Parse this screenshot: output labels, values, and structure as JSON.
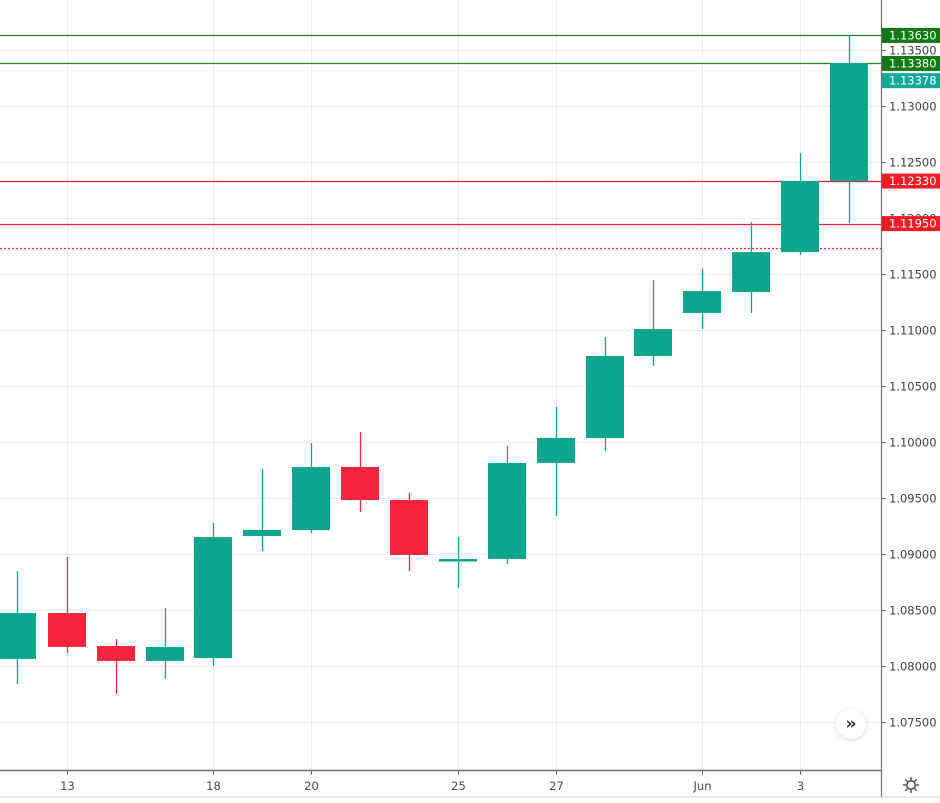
{
  "chart_data": {
    "type": "candlestick",
    "title": "",
    "xlabel": "",
    "ylabel": "",
    "ylim": [
      1.0715,
      1.1395
    ],
    "grid": true,
    "x_tick_labels": [
      "13",
      "18",
      "20",
      "25",
      "27",
      "Jun",
      "3"
    ],
    "y_tick_labels": [
      "1.13500",
      "1.13000",
      "1.12500",
      "1.12000",
      "1.11500",
      "1.11000",
      "1.10500",
      "1.10000",
      "1.09500",
      "1.09000",
      "1.08500",
      "1.08000",
      "1.07500"
    ],
    "candles": [
      {
        "o": 1.08063,
        "h": 1.08848,
        "l": 1.07839,
        "c": 1.08473
      },
      {
        "o": 1.08473,
        "h": 1.08973,
        "l": 1.08116,
        "c": 1.0817
      },
      {
        "o": 1.08179,
        "h": 1.08241,
        "l": 1.0775,
        "c": 1.08045
      },
      {
        "o": 1.08045,
        "h": 1.08518,
        "l": 1.07884,
        "c": 1.0817
      },
      {
        "o": 1.08071,
        "h": 1.09277,
        "l": 1.08,
        "c": 1.09152
      },
      {
        "o": 1.09161,
        "h": 1.09759,
        "l": 1.09027,
        "c": 1.09214
      },
      {
        "o": 1.09214,
        "h": 1.09991,
        "l": 1.09188,
        "c": 1.09777
      },
      {
        "o": 1.09777,
        "h": 1.10089,
        "l": 1.09375,
        "c": 1.09482
      },
      {
        "o": 1.09482,
        "h": 1.09545,
        "l": 1.08848,
        "c": 1.08991
      },
      {
        "o": 1.08946,
        "h": 1.09152,
        "l": 1.08696,
        "c": 1.08955
      },
      {
        "o": 1.08955,
        "h": 1.09964,
        "l": 1.08911,
        "c": 1.09813
      },
      {
        "o": 1.09813,
        "h": 1.10313,
        "l": 1.09339,
        "c": 1.10036
      },
      {
        "o": 1.10036,
        "h": 1.10938,
        "l": 1.0992,
        "c": 1.10768
      },
      {
        "o": 1.10768,
        "h": 1.11446,
        "l": 1.10679,
        "c": 1.11009
      },
      {
        "o": 1.11152,
        "h": 1.11545,
        "l": 1.11009,
        "c": 1.11348
      },
      {
        "o": 1.11339,
        "h": 1.11964,
        "l": 1.11152,
        "c": 1.11696
      },
      {
        "o": 1.11696,
        "h": 1.1258,
        "l": 1.1167,
        "c": 1.1233
      },
      {
        "o": 1.1233,
        "h": 1.13634,
        "l": 1.11955,
        "c": 1.13384
      }
    ],
    "horizontal_lines": [
      {
        "price": 1.1363,
        "label": "1.13630",
        "color": "#1e8a1e",
        "style": "solid"
      },
      {
        "price": 1.1338,
        "label": "1.13380",
        "color": "#1e8a1e",
        "style": "solid"
      },
      {
        "price": 1.1233,
        "label": "1.12330",
        "color": "#f21d3a",
        "style": "solid"
      },
      {
        "price": 1.1195,
        "label": "1.11950",
        "color": "#f21d3a",
        "style": "solid"
      },
      {
        "price": 1.1173,
        "label": "",
        "color": "#d9304a",
        "style": "dotted"
      }
    ],
    "last_price": {
      "value": 1.13378,
      "label": "1.13378",
      "color": "#14a89a"
    }
  },
  "colors": {
    "up": "#0ea58f",
    "down": "#f5243f",
    "grid": "#e8eef4",
    "axis": "#6e6e6e",
    "background": "#ffffff"
  },
  "controls": {
    "scroll_to_realtime_glyph": "»",
    "settings_icon": "gear-icon"
  }
}
